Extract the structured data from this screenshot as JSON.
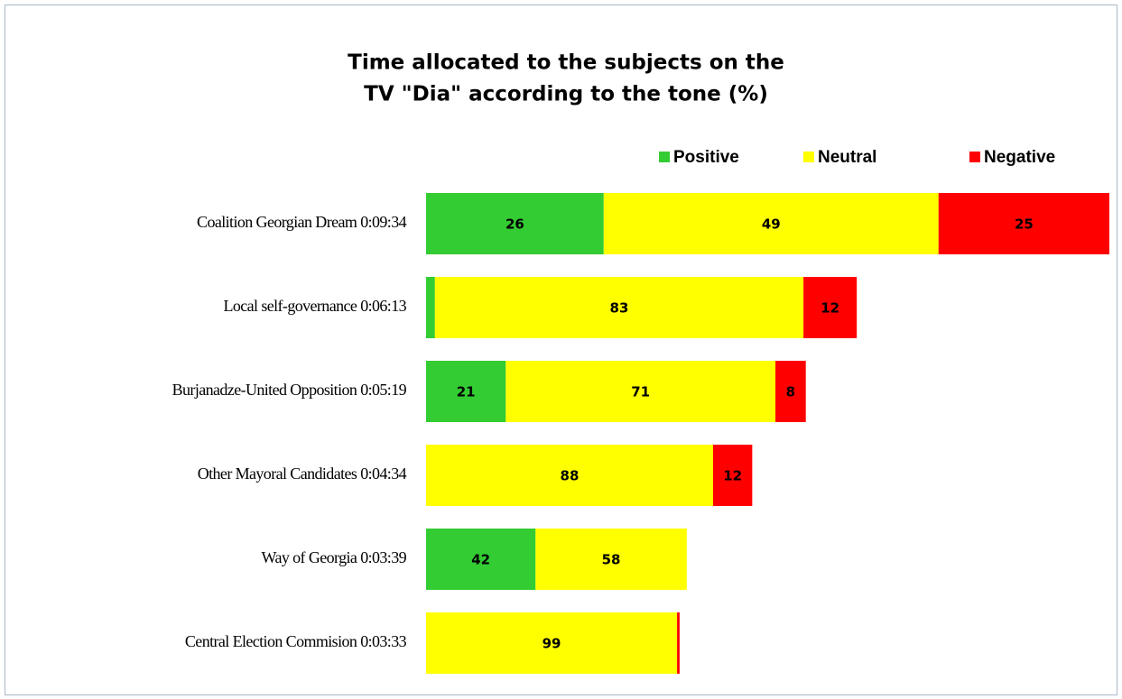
{
  "chart_data": {
    "type": "stacked-bar-horizontal",
    "title": [
      "Time allocated to the subjects on the",
      "TV \"Dia\" according to the tone (%)"
    ],
    "categories": [
      "Coalition Georgian Dream",
      "Local self-governance",
      "Burjanadze-United Opposition",
      "Other Mayoral Candidates",
      "Way of Georgia",
      "Central Election Commision"
    ],
    "durations": [
      "0:09:34",
      "0:06:13",
      "0:05:19",
      "0:04:34",
      "0:03:39",
      "0:03:33"
    ],
    "series": [
      {
        "name": "Positive",
        "color": "#33cc33",
        "values": [
          26,
          2,
          21,
          null,
          42,
          null
        ]
      },
      {
        "name": "Neutral",
        "color": "#ffff00",
        "values": [
          49,
          83,
          71,
          88,
          58,
          99
        ]
      },
      {
        "name": "Negative",
        "color": "#ff0000",
        "values": [
          25,
          12,
          8,
          12,
          null,
          1
        ]
      }
    ],
    "legend": "top"
  }
}
